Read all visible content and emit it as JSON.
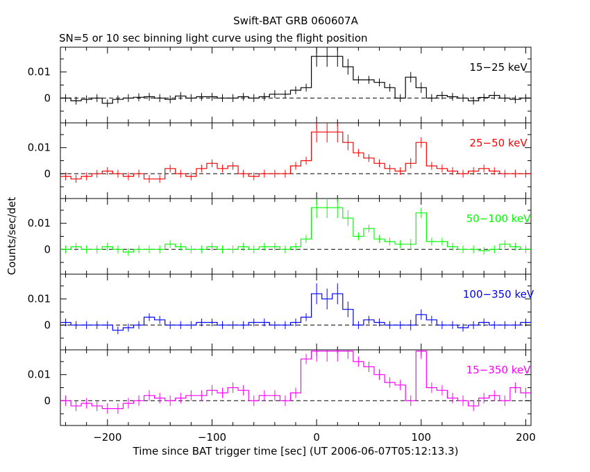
{
  "chart_data": {
    "type": "line",
    "title": "Swift-BAT GRB 060607A",
    "subtitle": "SN=5 or 10 sec binning light curve using the flight position",
    "xlabel": "Time since BAT trigger time [sec] (UT 2006-06-07T05:12:13.3)",
    "ylabel": "Counts/sec/det",
    "xlim": [
      -245,
      205
    ],
    "ylim": [
      -0.0095,
      0.0195
    ],
    "x_ticks": [
      -200,
      -100,
      0,
      100,
      200
    ],
    "x_tick_labels": [
      "−200",
      "−100",
      "0",
      "100",
      "200"
    ],
    "y_ticks": [
      0,
      0.01
    ],
    "y_tick_labels": [
      "0",
      "0.01"
    ],
    "dashed_zero_line": true,
    "series": [
      {
        "name": "15−25 keV",
        "color": "#000000",
        "bin_width": 10,
        "x": [
          -240,
          -230,
          -220,
          -210,
          -200,
          -190,
          -180,
          -170,
          -160,
          -150,
          -140,
          -130,
          -120,
          -110,
          -100,
          -90,
          -80,
          -70,
          -60,
          -50,
          -40,
          -30,
          -20,
          -10,
          0,
          10,
          20,
          30,
          40,
          50,
          60,
          70,
          80,
          90,
          100,
          110,
          120,
          130,
          140,
          150,
          160,
          170,
          180,
          190,
          200
        ],
        "values": [
          0.0,
          -0.001,
          -0.0005,
          0.0,
          -0.002,
          -0.0005,
          0.0,
          0.0003,
          0.0005,
          0.0,
          -0.0005,
          0.0008,
          0.0,
          0.0005,
          0.0005,
          0.0,
          0.0,
          0.0005,
          0.0,
          0.0005,
          0.0015,
          0.0015,
          0.003,
          0.004,
          0.016,
          0.016,
          0.016,
          0.012,
          0.007,
          0.007,
          0.006,
          0.004,
          0.0,
          0.008,
          0.004,
          0.0,
          0.001,
          0.0005,
          0.0,
          -0.001,
          0.0002,
          0.001,
          0.0,
          -0.0005,
          0.0
        ],
        "errors": [
          0.0015,
          0.0015,
          0.0015,
          0.0015,
          0.0015,
          0.0015,
          0.0015,
          0.0015,
          0.0015,
          0.0015,
          0.0015,
          0.0015,
          0.0015,
          0.0015,
          0.0015,
          0.0015,
          0.0015,
          0.0015,
          0.0015,
          0.0015,
          0.0015,
          0.0015,
          0.0015,
          0.0015,
          0.004,
          0.004,
          0.004,
          0.003,
          0.0015,
          0.0015,
          0.0015,
          0.0015,
          0.0015,
          0.002,
          0.002,
          0.0015,
          0.0015,
          0.0015,
          0.0015,
          0.0015,
          0.0015,
          0.0015,
          0.0015,
          0.0015,
          0.0015
        ]
      },
      {
        "name": "25−50 keV",
        "color": "#ff0000",
        "bin_width": 10,
        "x": [
          -240,
          -230,
          -220,
          -210,
          -200,
          -190,
          -180,
          -170,
          -160,
          -150,
          -140,
          -130,
          -120,
          -110,
          -100,
          -90,
          -80,
          -70,
          -60,
          -50,
          -40,
          -30,
          -20,
          -10,
          0,
          10,
          20,
          30,
          40,
          50,
          60,
          70,
          80,
          90,
          100,
          110,
          120,
          130,
          140,
          150,
          160,
          170,
          180,
          190,
          200
        ],
        "values": [
          -0.001,
          -0.002,
          -0.001,
          0.0,
          0.001,
          0.0,
          -0.001,
          0.0,
          -0.002,
          -0.002,
          0.002,
          0.0,
          -0.001,
          0.002,
          0.004,
          0.002,
          0.003,
          0.0,
          -0.001,
          0.0,
          0.0,
          0.0,
          0.003,
          0.005,
          0.016,
          0.016,
          0.016,
          0.012,
          0.008,
          0.006,
          0.004,
          0.002,
          0.001,
          0.004,
          0.012,
          0.003,
          0.002,
          0.001,
          0.0,
          0.001,
          0.002,
          0.001,
          0.0,
          0.0,
          0.0
        ],
        "errors": [
          0.0015,
          0.0015,
          0.0015,
          0.0015,
          0.0015,
          0.0015,
          0.0015,
          0.0015,
          0.0015,
          0.0015,
          0.0015,
          0.0015,
          0.0015,
          0.0015,
          0.0015,
          0.0015,
          0.0015,
          0.0015,
          0.0015,
          0.0015,
          0.0015,
          0.0015,
          0.0015,
          0.0015,
          0.004,
          0.004,
          0.004,
          0.003,
          0.0015,
          0.0015,
          0.0015,
          0.0015,
          0.0015,
          0.002,
          0.002,
          0.0015,
          0.0015,
          0.0015,
          0.0015,
          0.0015,
          0.0015,
          0.0015,
          0.0015,
          0.0015,
          0.0015
        ]
      },
      {
        "name": "50−100 keV",
        "color": "#00ff00",
        "bin_width": 10,
        "x": [
          -240,
          -230,
          -220,
          -210,
          -200,
          -190,
          -180,
          -170,
          -160,
          -150,
          -140,
          -130,
          -120,
          -110,
          -100,
          -90,
          -80,
          -70,
          -60,
          -50,
          -40,
          -30,
          -20,
          -10,
          0,
          10,
          20,
          30,
          40,
          50,
          60,
          70,
          80,
          90,
          100,
          110,
          120,
          130,
          140,
          150,
          160,
          170,
          180,
          190,
          200
        ],
        "values": [
          0.0,
          0.001,
          0.0,
          0.0,
          0.001,
          0.0,
          -0.001,
          0.0,
          0.0,
          0.0,
          0.002,
          0.001,
          0.0,
          0.0,
          0.001,
          0.0,
          0.0,
          0.001,
          0.0,
          0.001,
          0.001,
          0.0,
          0.001,
          0.004,
          0.016,
          0.016,
          0.016,
          0.012,
          0.005,
          0.008,
          0.004,
          0.003,
          0.002,
          0.002,
          0.014,
          0.003,
          0.003,
          0.001,
          0.0,
          0.0,
          -0.0005,
          0.0,
          0.002,
          0.001,
          0.0
        ],
        "errors": [
          0.0015,
          0.0015,
          0.0015,
          0.0015,
          0.0015,
          0.0015,
          0.0015,
          0.0015,
          0.0015,
          0.0015,
          0.0015,
          0.0015,
          0.0015,
          0.0015,
          0.0015,
          0.0015,
          0.0015,
          0.0015,
          0.0015,
          0.0015,
          0.0015,
          0.0015,
          0.0015,
          0.0015,
          0.004,
          0.004,
          0.004,
          0.003,
          0.0015,
          0.0015,
          0.0015,
          0.0015,
          0.0015,
          0.002,
          0.002,
          0.0015,
          0.0015,
          0.0015,
          0.0015,
          0.0015,
          0.0015,
          0.0015,
          0.0015,
          0.0015,
          0.0015
        ]
      },
      {
        "name": "100−350 keV",
        "color": "#0000ff",
        "bin_width": 10,
        "x": [
          -240,
          -230,
          -220,
          -210,
          -200,
          -190,
          -180,
          -170,
          -160,
          -150,
          -140,
          -130,
          -120,
          -110,
          -100,
          -90,
          -80,
          -70,
          -60,
          -50,
          -40,
          -30,
          -20,
          -10,
          0,
          10,
          20,
          30,
          40,
          50,
          60,
          70,
          80,
          90,
          100,
          110,
          120,
          130,
          140,
          150,
          160,
          170,
          180,
          190,
          200
        ],
        "values": [
          0.001,
          0.0,
          0.0,
          0.0,
          0.0,
          -0.002,
          -0.001,
          0.0,
          0.003,
          0.002,
          0.0,
          0.0,
          0.0,
          0.001,
          0.001,
          0.0,
          0.0,
          0.0,
          0.001,
          0.001,
          0.0,
          0.0,
          0.001,
          0.003,
          0.012,
          0.01,
          0.012,
          0.006,
          0.0,
          0.002,
          0.001,
          0.0,
          0.0,
          0.0,
          0.004,
          0.002,
          0.0,
          0.0,
          -0.001,
          0.0,
          0.001,
          0.0,
          0.0,
          0.0,
          0.001
        ],
        "errors": [
          0.0015,
          0.0015,
          0.0015,
          0.0015,
          0.0015,
          0.0015,
          0.0015,
          0.0015,
          0.0015,
          0.0015,
          0.0015,
          0.0015,
          0.0015,
          0.0015,
          0.0015,
          0.0015,
          0.0015,
          0.0015,
          0.0015,
          0.0015,
          0.0015,
          0.0015,
          0.0015,
          0.0015,
          0.004,
          0.004,
          0.004,
          0.003,
          0.0015,
          0.0015,
          0.0015,
          0.0015,
          0.0015,
          0.002,
          0.002,
          0.0015,
          0.0015,
          0.0015,
          0.0015,
          0.0015,
          0.0015,
          0.0015,
          0.0015,
          0.0015,
          0.0015
        ]
      },
      {
        "name": "15−350 keV",
        "color": "#ff00ff",
        "bin_width": 10,
        "x": [
          -240,
          -230,
          -220,
          -210,
          -200,
          -190,
          -180,
          -170,
          -160,
          -150,
          -140,
          -130,
          -120,
          -110,
          -100,
          -90,
          -80,
          -70,
          -60,
          -50,
          -40,
          -30,
          -20,
          -10,
          0,
          10,
          20,
          30,
          40,
          50,
          60,
          70,
          80,
          90,
          100,
          110,
          120,
          130,
          140,
          150,
          160,
          170,
          180,
          190,
          200
        ],
        "values": [
          0.0,
          -0.002,
          -0.001,
          -0.002,
          -0.003,
          -0.003,
          -0.001,
          0.0,
          0.002,
          0.001,
          0.0,
          0.001,
          0.002,
          0.002,
          0.004,
          0.003,
          0.005,
          0.004,
          0.0,
          0.002,
          0.002,
          0.0,
          0.003,
          0.016,
          0.019,
          0.019,
          0.019,
          0.019,
          0.015,
          0.013,
          0.01,
          0.007,
          0.006,
          0.0,
          0.019,
          0.005,
          0.004,
          0.001,
          0.0,
          -0.002,
          0.001,
          0.002,
          0.0,
          0.005,
          0.003
        ],
        "errors": [
          0.002,
          0.002,
          0.002,
          0.002,
          0.002,
          0.002,
          0.002,
          0.002,
          0.002,
          0.002,
          0.002,
          0.002,
          0.002,
          0.002,
          0.002,
          0.002,
          0.002,
          0.002,
          0.002,
          0.002,
          0.002,
          0.002,
          0.002,
          0.002,
          0.004,
          0.004,
          0.004,
          0.003,
          0.002,
          0.002,
          0.002,
          0.002,
          0.002,
          0.002,
          0.003,
          0.002,
          0.002,
          0.002,
          0.002,
          0.002,
          0.002,
          0.002,
          0.002,
          0.002,
          0.002
        ]
      }
    ]
  }
}
